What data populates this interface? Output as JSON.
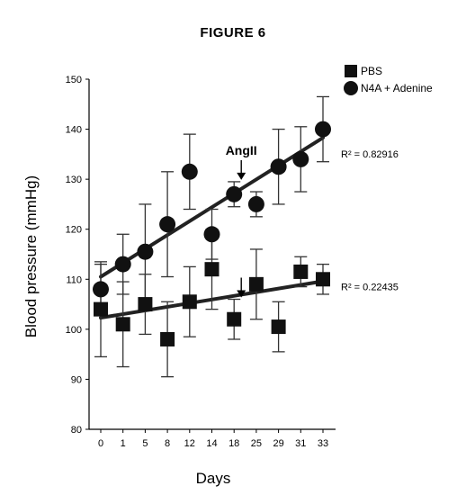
{
  "figure_title": "FIGURE 6",
  "chart_data": {
    "type": "scatter",
    "xlabel": "Days",
    "ylabel": "Blood pressure (mmHg)",
    "ylim": [
      80,
      150
    ],
    "yticks": [
      80,
      90,
      100,
      110,
      120,
      130,
      140,
      150
    ],
    "categories": [
      "0",
      "1",
      "5",
      "8",
      "12",
      "14",
      "18",
      "25",
      "29",
      "31",
      "33"
    ],
    "series": [
      {
        "name": "PBS",
        "marker": "square",
        "color": "#111111",
        "values": [
          104,
          101,
          105,
          98,
          105.5,
          112,
          102,
          109,
          100.5,
          111.5,
          110
        ],
        "error": [
          9.5,
          8.5,
          6.0,
          7.5,
          7.0,
          8.0,
          4.0,
          7.0,
          5.0,
          3.0,
          3.0
        ],
        "trendline": {
          "start": 102.3,
          "end": 109.6
        },
        "r2_label": "R² = 0.22435"
      },
      {
        "name": "N4A + Adenine",
        "marker": "circle",
        "color": "#111111",
        "values": [
          108,
          113,
          115.5,
          121,
          131.5,
          119,
          127,
          125,
          132.5,
          134,
          140
        ],
        "error": [
          5.0,
          6.0,
          9.5,
          10.5,
          7.5,
          5.0,
          2.5,
          2.5,
          7.5,
          6.5,
          6.5
        ],
        "trendline": {
          "start": 110.5,
          "end": 138.3
        },
        "r2_label": "R² = 0.82916"
      }
    ],
    "annotations": [
      {
        "text": "AngII",
        "category": "18",
        "arrow_series": "N4A + Adenine"
      },
      {
        "text": "",
        "category": "18",
        "arrow_series": "PBS"
      }
    ],
    "grid": false,
    "legend_position": "top-right"
  }
}
